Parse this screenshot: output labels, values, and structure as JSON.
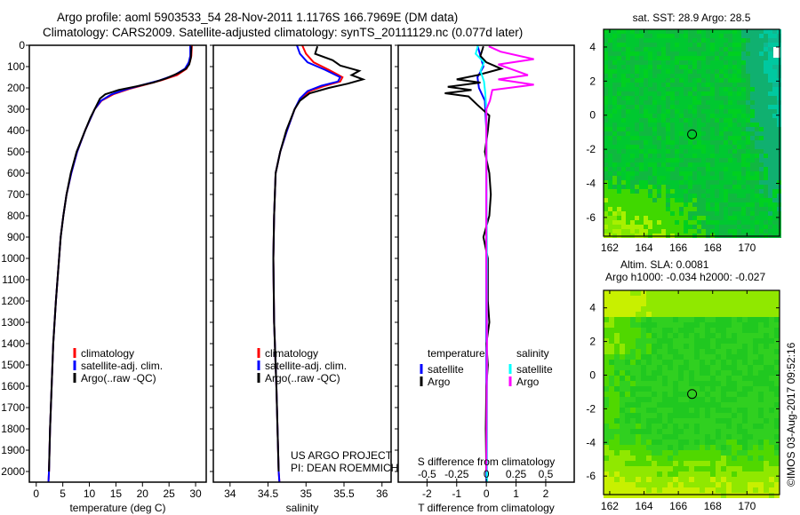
{
  "title_line1": "Argo profile: aoml 5903533_54 28-Nov-2011 1.1176S 166.7969E (DM data)",
  "title_line2": "Climatology: CARS2009. Satellite-adjusted climatology: synTS_20111129.nc (0.077d later)",
  "credit": "©IMOS 03-Aug-2017 09:52:16",
  "project_line1": "US ARGO PROJECT",
  "project_line2": "PI: DEAN ROEMMICH",
  "colors": {
    "climatology": "#ff0000",
    "satellite": "#0000ff",
    "argo": "#000000",
    "sal_satellite": "#00ffff",
    "sal_argo": "#ff00ff"
  },
  "chart_data": [
    {
      "type": "line",
      "id": "temperature",
      "xlabel": "temperature (deg C)",
      "ylabel": "",
      "xlim": [
        -1.3,
        32
      ],
      "ylim": [
        2050,
        0
      ],
      "xticks": [
        0,
        5,
        10,
        15,
        20,
        25,
        30
      ],
      "yticks": [
        0,
        100,
        200,
        300,
        400,
        500,
        600,
        700,
        800,
        900,
        1000,
        1100,
        1200,
        1300,
        1400,
        1500,
        1600,
        1700,
        1800,
        1900,
        2000
      ],
      "legend": [
        "climatology",
        "satellite-adj. clim.",
        "Argo(..raw -QC)"
      ],
      "series": [
        {
          "name": "climatology",
          "color": "#ff0000",
          "points": [
            [
              29.3,
              0
            ],
            [
              29.2,
              50
            ],
            [
              28.9,
              80
            ],
            [
              28.3,
              110
            ],
            [
              26.5,
              140
            ],
            [
              23.5,
              165
            ],
            [
              20.5,
              185
            ],
            [
              17.5,
              205
            ],
            [
              14.5,
              230
            ],
            [
              12.3,
              260
            ],
            [
              11,
              300
            ],
            [
              9.2,
              400
            ],
            [
              7.7,
              500
            ],
            [
              6.6,
              600
            ],
            [
              5.7,
              700
            ],
            [
              5.1,
              800
            ],
            [
              4.6,
              900
            ],
            [
              4.3,
              1000
            ],
            [
              3.7,
              1200
            ],
            [
              3.2,
              1400
            ],
            [
              2.9,
              1600
            ],
            [
              2.6,
              1800
            ],
            [
              2.4,
              2000
            ],
            [
              2.3,
              2050
            ]
          ]
        },
        {
          "name": "satellite-adj. clim.",
          "color": "#0000ff",
          "points": [
            [
              29.0,
              0
            ],
            [
              29.0,
              50
            ],
            [
              28.7,
              80
            ],
            [
              28.0,
              110
            ],
            [
              26.0,
              140
            ],
            [
              23.2,
              165
            ],
            [
              20.2,
              185
            ],
            [
              17.2,
              205
            ],
            [
              14.2,
              230
            ],
            [
              12.2,
              260
            ],
            [
              11,
              300
            ],
            [
              9.2,
              400
            ],
            [
              7.7,
              500
            ],
            [
              6.6,
              600
            ],
            [
              5.7,
              700
            ],
            [
              5.1,
              800
            ],
            [
              4.6,
              900
            ],
            [
              4.3,
              1000
            ],
            [
              3.7,
              1200
            ],
            [
              3.2,
              1400
            ],
            [
              2.9,
              1600
            ],
            [
              2.6,
              1800
            ],
            [
              2.4,
              2000
            ],
            [
              2.3,
              2050
            ]
          ]
        },
        {
          "name": "Argo(..raw -QC)",
          "color": "#000000",
          "points": [
            [
              29.2,
              5
            ],
            [
              29.1,
              60
            ],
            [
              28.8,
              90
            ],
            [
              28.2,
              110
            ],
            [
              26.8,
              130
            ],
            [
              24.5,
              155
            ],
            [
              22,
              175
            ],
            [
              19,
              192
            ],
            [
              15.5,
              210
            ],
            [
              13,
              230
            ],
            [
              12,
              250
            ],
            [
              11.2,
              290
            ],
            [
              10.2,
              340
            ],
            [
              9.2,
              400
            ],
            [
              7.6,
              500
            ],
            [
              6.5,
              600
            ],
            [
              5.7,
              700
            ],
            [
              5.1,
              800
            ],
            [
              4.6,
              900
            ],
            [
              4.3,
              1000
            ],
            [
              3.7,
              1200
            ],
            [
              3.2,
              1400
            ],
            [
              2.9,
              1600
            ],
            [
              2.6,
              1800
            ],
            [
              2.4,
              2000
            ]
          ]
        }
      ]
    },
    {
      "type": "line",
      "id": "salinity",
      "xlabel": "salinity",
      "xlim": [
        33.78,
        36.12
      ],
      "ylim": [
        2050,
        0
      ],
      "xticks": [
        34,
        34.5,
        35,
        35.5,
        36
      ],
      "legend": [
        "climatology",
        "satellite-adj. clim.",
        "Argo(..raw -QC)"
      ],
      "series": [
        {
          "name": "climatology",
          "color": "#ff0000",
          "points": [
            [
              34.95,
              0
            ],
            [
              35.0,
              40
            ],
            [
              35.1,
              80
            ],
            [
              35.3,
              115
            ],
            [
              35.48,
              150
            ],
            [
              35.45,
              170
            ],
            [
              35.25,
              190
            ],
            [
              35.05,
              215
            ],
            [
              34.93,
              250
            ],
            [
              34.85,
              300
            ],
            [
              34.75,
              400
            ],
            [
              34.66,
              500
            ],
            [
              34.6,
              600
            ],
            [
              34.58,
              800
            ],
            [
              34.57,
              1000
            ],
            [
              34.58,
              1300
            ],
            [
              34.61,
              1600
            ],
            [
              34.64,
              2000
            ],
            [
              34.65,
              2050
            ]
          ]
        },
        {
          "name": "satellite-adj. clim.",
          "color": "#0000ff",
          "points": [
            [
              34.88,
              0
            ],
            [
              34.92,
              40
            ],
            [
              35.02,
              80
            ],
            [
              35.25,
              115
            ],
            [
              35.45,
              150
            ],
            [
              35.42,
              170
            ],
            [
              35.2,
              190
            ],
            [
              35.02,
              215
            ],
            [
              34.92,
              250
            ],
            [
              34.85,
              300
            ],
            [
              34.75,
              400
            ],
            [
              34.66,
              500
            ],
            [
              34.6,
              600
            ],
            [
              34.58,
              800
            ],
            [
              34.57,
              1000
            ],
            [
              34.58,
              1300
            ],
            [
              34.61,
              1600
            ],
            [
              34.64,
              2000
            ],
            [
              34.65,
              2050
            ]
          ]
        },
        {
          "name": "Argo(..raw -QC)",
          "color": "#000000",
          "points": [
            [
              35.15,
              5
            ],
            [
              35.12,
              40
            ],
            [
              35.35,
              70
            ],
            [
              35.45,
              95
            ],
            [
              35.7,
              120
            ],
            [
              35.6,
              140
            ],
            [
              35.75,
              160
            ],
            [
              35.55,
              180
            ],
            [
              35.3,
              200
            ],
            [
              35.05,
              225
            ],
            [
              34.92,
              260
            ],
            [
              34.85,
              300
            ],
            [
              34.74,
              400
            ],
            [
              34.66,
              500
            ],
            [
              34.6,
              600
            ],
            [
              34.58,
              800
            ],
            [
              34.57,
              1000
            ],
            [
              34.58,
              1300
            ],
            [
              34.61,
              1600
            ],
            [
              34.64,
              2000
            ]
          ]
        }
      ]
    },
    {
      "type": "line",
      "id": "differences",
      "xlabel": "T difference from climatology",
      "x2label": "S difference from climatology",
      "xlim": [
        -2.97,
        2.96
      ],
      "ylim": [
        2050,
        0
      ],
      "xticks": [
        -2,
        -1,
        0,
        1,
        2
      ],
      "x2ticks": [
        -0.5,
        -0.25,
        0,
        0.25,
        0.5
      ],
      "legend_temperature_title": "temperature",
      "legend_salinity_title": "salinity",
      "legend_labels": [
        "satellite",
        "Argo",
        "satellite",
        "Argo"
      ],
      "series": [
        {
          "name": "temperature satellite",
          "axis": "T",
          "color": "#0000ff",
          "points": [
            [
              -0.3,
              0
            ],
            [
              -0.2,
              50
            ],
            [
              -0.1,
              100
            ],
            [
              -0.3,
              150
            ],
            [
              -0.25,
              200
            ],
            [
              -0.05,
              260
            ],
            [
              0,
              400
            ],
            [
              0,
              2050
            ]
          ]
        },
        {
          "name": "temperature Argo",
          "axis": "T",
          "color": "#000000",
          "points": [
            [
              -0.1,
              5
            ],
            [
              -0.2,
              50
            ],
            [
              0,
              80
            ],
            [
              0.5,
              110
            ],
            [
              -0.3,
              140
            ],
            [
              -1.0,
              160
            ],
            [
              -0.2,
              175
            ],
            [
              -1.3,
              195
            ],
            [
              -0.5,
              210
            ],
            [
              -1.4,
              225
            ],
            [
              -0.6,
              240
            ],
            [
              -0.3,
              280
            ],
            [
              0.1,
              330
            ],
            [
              0.05,
              400
            ],
            [
              -0.05,
              500
            ],
            [
              0.1,
              600
            ],
            [
              0.15,
              700
            ],
            [
              0.1,
              800
            ],
            [
              -0.1,
              900
            ],
            [
              0.05,
              1000
            ],
            [
              0.05,
              1200
            ],
            [
              0.1,
              1300
            ],
            [
              0,
              1400
            ],
            [
              0.05,
              1500
            ],
            [
              0,
              1600
            ],
            [
              -0.02,
              1800
            ],
            [
              0,
              2000
            ]
          ]
        },
        {
          "name": "salinity satellite",
          "axis": "S",
          "color": "#00ffff",
          "points": [
            [
              -0.07,
              0
            ],
            [
              -0.09,
              40
            ],
            [
              -0.02,
              80
            ],
            [
              -0.05,
              120
            ],
            [
              -0.02,
              170
            ],
            [
              -0.01,
              220
            ],
            [
              0,
              300
            ],
            [
              0,
              600
            ],
            [
              0.005,
              1000
            ],
            [
              0.005,
              2050
            ]
          ]
        },
        {
          "name": "salinity Argo",
          "axis": "S",
          "color": "#ff00ff",
          "points": [
            [
              0.02,
              5
            ],
            [
              0.12,
              30
            ],
            [
              0.4,
              65
            ],
            [
              0.1,
              90
            ],
            [
              0.35,
              140
            ],
            [
              0.1,
              160
            ],
            [
              0.4,
              185
            ],
            [
              0.05,
              210
            ],
            [
              0.03,
              260
            ],
            [
              0,
              300
            ],
            [
              0,
              1000
            ],
            [
              0.005,
              1400
            ],
            [
              0,
              2000
            ]
          ]
        }
      ]
    },
    {
      "type": "heatmap",
      "id": "sst_map",
      "title": "sat. SST: 28.9 Argo: 28.5",
      "xlim": [
        161.64,
        171.9
      ],
      "ylim": [
        -7.1,
        5.04
      ],
      "xticks": [
        162,
        164,
        166,
        168,
        170
      ],
      "yticks": [
        -6,
        -4,
        -2,
        0,
        2,
        4
      ],
      "marker": {
        "lon": 166.8,
        "lat": -1.12
      }
    },
    {
      "type": "heatmap",
      "id": "sla_map",
      "title_line1": "Altim. SLA: 0.0081",
      "title_line2": "Argo h1000: -0.034 h2000: -0.027",
      "xlim": [
        161.64,
        171.9
      ],
      "ylim": [
        -7.1,
        5.04
      ],
      "xticks": [
        162,
        164,
        166,
        168,
        170
      ],
      "yticks": [
        -6,
        -4,
        -2,
        0,
        2,
        4
      ],
      "marker": {
        "lon": 166.8,
        "lat": -1.12
      }
    }
  ]
}
